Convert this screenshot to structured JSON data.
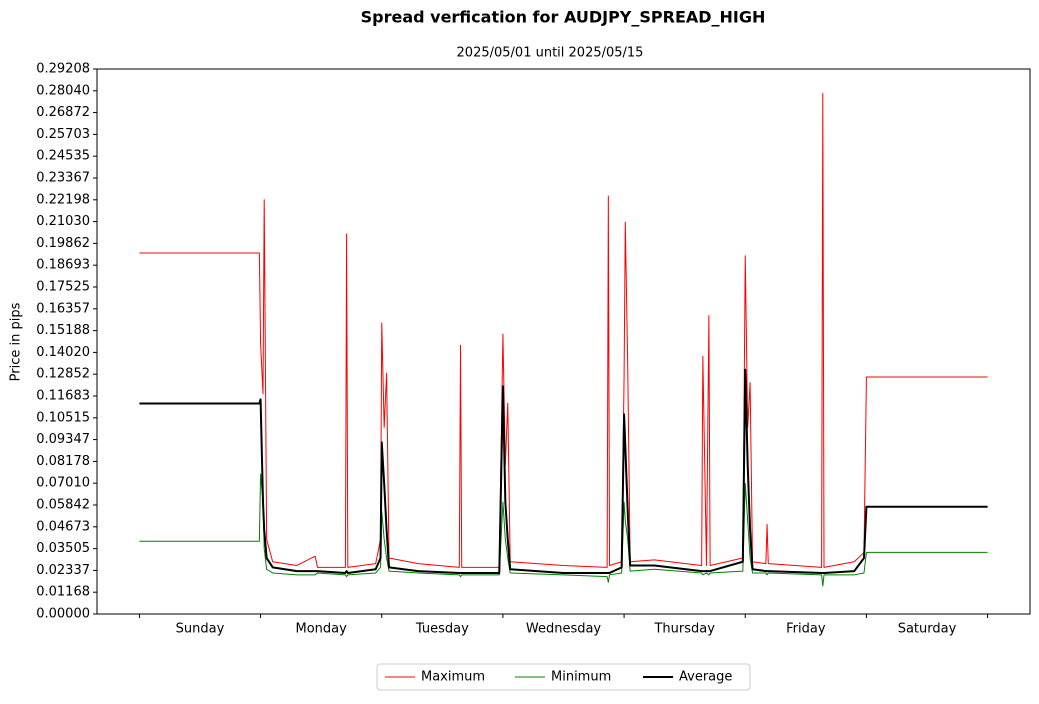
{
  "chart_data": {
    "type": "line",
    "title": "Spread verfication for AUDJPY_SPREAD_HIGH",
    "subtitle": "2025/05/01 until 2025/05/15",
    "y_label": "Price in pips",
    "categories": [
      "Sunday",
      "Monday",
      "Tuesday",
      "Wednesday",
      "Thursday",
      "Friday",
      "Saturday"
    ],
    "x": [
      0,
      0.99,
      1.0,
      1.02,
      1.03,
      1.05,
      1.1,
      1.3,
      1.45,
      1.47,
      1.7,
      1.71,
      1.72,
      1.95,
      1.99,
      2.0,
      2.02,
      2.04,
      2.06,
      2.3,
      2.64,
      2.65,
      2.66,
      2.97,
      3.0,
      3.02,
      3.04,
      3.06,
      3.5,
      3.86,
      3.87,
      3.88,
      3.98,
      4.0,
      4.01,
      4.03,
      4.05,
      4.25,
      4.64,
      4.65,
      4.68,
      4.7,
      4.71,
      4.98,
      5.0,
      5.02,
      5.04,
      5.06,
      5.17,
      5.18,
      5.19,
      5.63,
      5.64,
      5.65,
      5.9,
      5.98,
      6.0,
      7.0
    ],
    "series": [
      {
        "name": "Maximum",
        "color": "#ff0000",
        "width": 1,
        "values": [
          0.1935,
          0.1935,
          0.145,
          0.118,
          0.222,
          0.04,
          0.028,
          0.026,
          0.031,
          0.025,
          0.025,
          0.2037,
          0.025,
          0.027,
          0.04,
          0.156,
          0.1,
          0.129,
          0.03,
          0.027,
          0.025,
          0.144,
          0.025,
          0.025,
          0.15,
          0.08,
          0.113,
          0.028,
          0.026,
          0.025,
          0.224,
          0.026,
          0.028,
          0.127,
          0.21,
          0.133,
          0.028,
          0.029,
          0.026,
          0.138,
          0.026,
          0.16,
          0.026,
          0.03,
          0.192,
          0.1,
          0.124,
          0.028,
          0.027,
          0.048,
          0.027,
          0.025,
          0.279,
          0.025,
          0.028,
          0.033,
          0.127,
          0.127
        ]
      },
      {
        "name": "Minimum",
        "color": "#008000",
        "width": 1,
        "values": [
          0.039,
          0.039,
          0.075,
          0.06,
          0.035,
          0.024,
          0.022,
          0.021,
          0.021,
          0.022,
          0.021,
          0.02,
          0.021,
          0.022,
          0.025,
          0.055,
          0.04,
          0.03,
          0.023,
          0.022,
          0.021,
          0.02,
          0.021,
          0.021,
          0.06,
          0.04,
          0.03,
          0.022,
          0.021,
          0.02,
          0.017,
          0.021,
          0.022,
          0.06,
          0.05,
          0.04,
          0.023,
          0.024,
          0.022,
          0.021,
          0.022,
          0.021,
          0.022,
          0.023,
          0.07,
          0.05,
          0.03,
          0.022,
          0.022,
          0.021,
          0.022,
          0.021,
          0.015,
          0.021,
          0.021,
          0.022,
          0.033,
          0.033
        ]
      },
      {
        "name": "Average",
        "color": "#000000",
        "width": 2,
        "values": [
          0.1128,
          0.1128,
          0.115,
          0.06,
          0.045,
          0.03,
          0.025,
          0.023,
          0.023,
          0.023,
          0.022,
          0.023,
          0.022,
          0.024,
          0.03,
          0.092,
          0.07,
          0.045,
          0.025,
          0.023,
          0.022,
          0.022,
          0.022,
          0.022,
          0.122,
          0.06,
          0.04,
          0.024,
          0.022,
          0.022,
          0.022,
          0.022,
          0.025,
          0.107,
          0.09,
          0.055,
          0.026,
          0.026,
          0.023,
          0.023,
          0.023,
          0.023,
          0.023,
          0.028,
          0.131,
          0.08,
          0.045,
          0.024,
          0.023,
          0.023,
          0.023,
          0.022,
          0.022,
          0.022,
          0.023,
          0.03,
          0.0575,
          0.0575
        ]
      }
    ],
    "xlim": [
      -0.35,
      7.35
    ],
    "xticks": [
      0,
      1,
      2,
      3,
      4,
      5,
      6,
      7
    ],
    "ylim": [
      0,
      0.29208
    ],
    "yticks": [
      {
        "value": 0,
        "label": "0.00000"
      },
      0.01168,
      0.02337,
      0.03505,
      0.04673,
      0.05842,
      {
        "value": 0.0701,
        "label": "0.07010"
      },
      0.08178,
      0.09347,
      0.10515,
      0.11683,
      0.12852,
      {
        "value": 0.1402,
        "label": "0.14020"
      },
      0.15188,
      0.16357,
      0.17525,
      0.18693,
      0.19862,
      {
        "value": 0.2103,
        "label": "0.21030"
      },
      0.22198,
      0.23367,
      0.24535,
      0.25703,
      0.26872,
      {
        "value": 0.2804,
        "label": "0.28040"
      },
      0.29208
    ],
    "legend": "bottom"
  }
}
